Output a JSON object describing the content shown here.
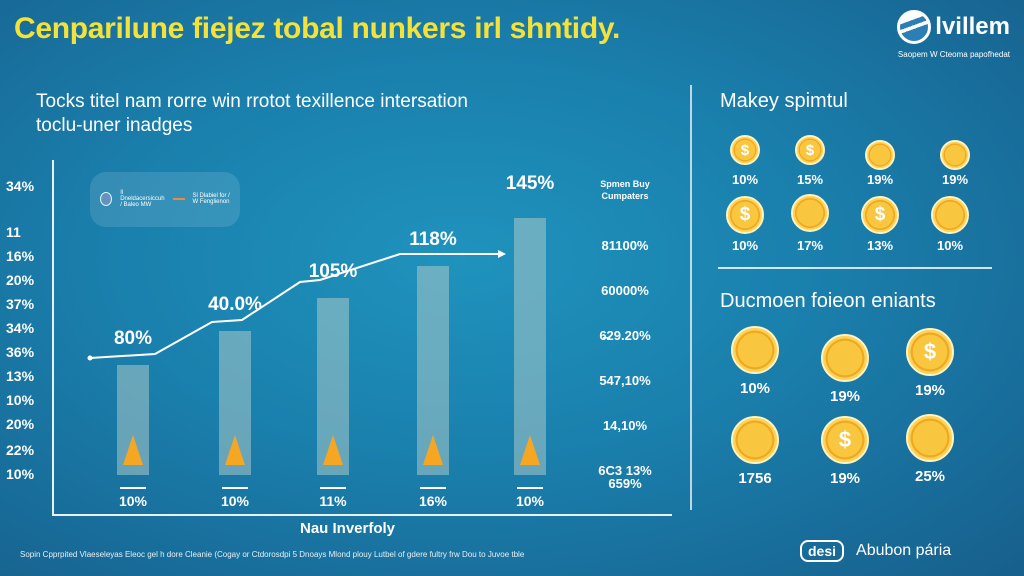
{
  "title": "Cenparilune fiejez tobal nunkers irl shntidy.",
  "subtitle": [
    "Tocks titel nam rorre win rrotot texillence intersation",
    "toclu-uner inadges"
  ],
  "logo": {
    "name": "lvillem",
    "tagline": "Saopem W Cteoma papofhedat"
  },
  "legend": {
    "item1": "Il Dneldacersiccuh / Baleo MW",
    "item2": "Sl Dlabiel for / W Fenglienon"
  },
  "colors": {
    "accent": "#f4e23a",
    "coin": "#f9c640",
    "bar": "#aac8c8"
  },
  "chart_data": {
    "type": "bar",
    "title": "Cenparilune fiejez tobal nunkers irl shntidy.",
    "xlabel": "Nau Inverfoly",
    "ylabel": "",
    "y_tick_labels": [
      "34%",
      "11",
      "16%",
      "20%",
      "37%",
      "34%",
      "36%",
      "13%",
      "10%",
      "20%",
      "22%",
      "10%"
    ],
    "categories": [
      "10%",
      "10%",
      "11%",
      "16%",
      "10%"
    ],
    "values": [
      80,
      40.0,
      105,
      118,
      145
    ],
    "value_labels": [
      "80%",
      "40.0%",
      "105%",
      "118%",
      "145%"
    ],
    "line_series": {
      "name": "trend",
      "values": [
        80,
        90,
        105,
        118,
        118
      ]
    },
    "ylim": [
      0,
      160
    ],
    "right_axis": {
      "title": [
        "Spmen Buy",
        "Cumpaters"
      ],
      "labels": [
        "81100%",
        "60000%",
        "6̶29.20%",
        "547,10%",
        "14,10%",
        "6C3 13%",
        "659%"
      ]
    }
  },
  "panel1": {
    "title": "Makey spimtul",
    "items": [
      {
        "icon": "dollar-coin",
        "label": "10%"
      },
      {
        "icon": "dollar-coin",
        "label": "15%"
      },
      {
        "icon": "coin-stack-screen",
        "label": "19%"
      },
      {
        "icon": "coin-stack-screen",
        "label": "19%"
      },
      {
        "icon": "dollar-coin",
        "label": "10%"
      },
      {
        "icon": "coin",
        "label": "17%"
      },
      {
        "icon": "dollar-coin",
        "label": "13%"
      },
      {
        "icon": "coin-card",
        "label": "10%"
      }
    ]
  },
  "panel2": {
    "title": "Ducmoen foieon eniants",
    "items": [
      {
        "icon": "coin",
        "label": "10%"
      },
      {
        "icon": "coin-card",
        "label": "19%"
      },
      {
        "icon": "dollar-coin-card",
        "label": "19%"
      },
      {
        "icon": "coin",
        "label": "1756"
      },
      {
        "icon": "dollar-coin",
        "label": "19%"
      },
      {
        "icon": "coin",
        "label": "25%"
      }
    ]
  },
  "footer": {
    "text": "Sopin Cpprpited Vlaeseleyas Eleoc gel h dore Cleanie (Cogay or Ctdorosdpi 5 Dnoays Mlond plouy Lutbel of gdere fultry frw Dou to Juvoe tble",
    "brand_badge": "desi",
    "brand_name": "Abubon pária"
  }
}
